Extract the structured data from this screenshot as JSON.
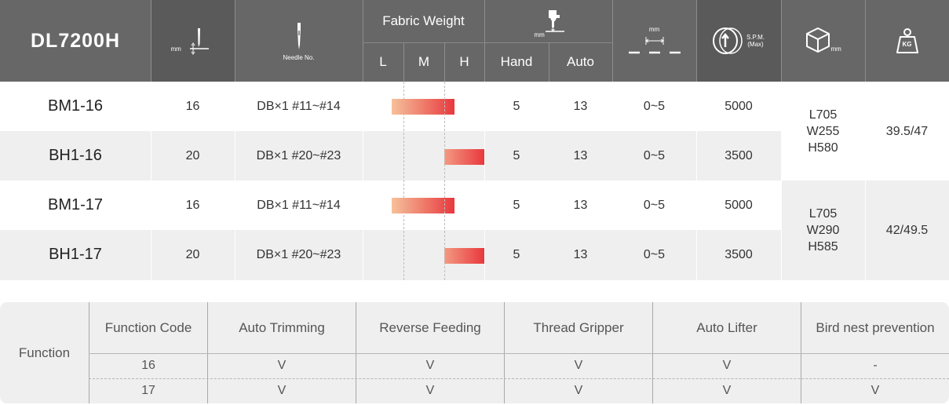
{
  "header": {
    "model_title": "DL7200H",
    "needle_bar_icon": "needle-bar-stroke-icon",
    "needle_bar_unit": "mm",
    "needle_icon": "needle-icon",
    "needle_caption": "Needle No.",
    "fabric_weight_title": "Fabric Weight",
    "fabric_weight_cols": [
      "L",
      "M",
      "H"
    ],
    "presser_icon": "presser-foot-lift-icon",
    "presser_unit": "mm",
    "presser_cols": [
      "Hand",
      "Auto"
    ],
    "stitch_length_icon": "stitch-length-icon",
    "stitch_length_unit": "mm",
    "speed_icon": "speed-wheel-icon",
    "speed_caption_1": "S.P.M.",
    "speed_caption_2": "(Max)",
    "dimension_icon": "box-dimension-icon",
    "dimension_unit": "mm",
    "weight_icon": "weight-kg-icon",
    "weight_label": "KG"
  },
  "models": [
    {
      "model": "BM1-16",
      "needle_bar_stroke": "16",
      "needle": "DB×1  #11~#14",
      "fabric_weight": "L-M",
      "hand": "5",
      "auto": "13",
      "stitch_length": "0~5",
      "spm": "5000"
    },
    {
      "model": "BH1-16",
      "needle_bar_stroke": "20",
      "needle": "DB×1  #20~#23",
      "fabric_weight": "H",
      "hand": "5",
      "auto": "13",
      "stitch_length": "0~5",
      "spm": "3500"
    },
    {
      "model": "BM1-17",
      "needle_bar_stroke": "16",
      "needle": "DB×1  #11~#14",
      "fabric_weight": "L-M",
      "hand": "5",
      "auto": "13",
      "stitch_length": "0~5",
      "spm": "5000"
    },
    {
      "model": "BH1-17",
      "needle_bar_stroke": "20",
      "needle": "DB×1  #20~#23",
      "fabric_weight": "H",
      "hand": "5",
      "auto": "13",
      "stitch_length": "0~5",
      "spm": "3500"
    }
  ],
  "groups": [
    {
      "dimension_l": "L705",
      "dimension_w": "W255",
      "dimension_h": "H580",
      "weight": "39.5/47"
    },
    {
      "dimension_l": "L705",
      "dimension_w": "W290",
      "dimension_h": "H585",
      "weight": "42/49.5"
    }
  ],
  "function_table": {
    "label": "Function",
    "headers": [
      "Function Code",
      "Auto Trimming",
      "Reverse Feeding",
      "Thread Gripper",
      "Auto Lifter",
      "Bird nest prevention"
    ],
    "rows": [
      [
        "16",
        "V",
        "V",
        "V",
        "V",
        "-"
      ],
      [
        "17",
        "V",
        "V",
        "V",
        "V",
        "V"
      ]
    ]
  },
  "colors": {
    "header_bg": "#676767",
    "bar_light": "#f6c19a",
    "bar_dark": "#e8383d",
    "row_alt": "#efefef"
  }
}
